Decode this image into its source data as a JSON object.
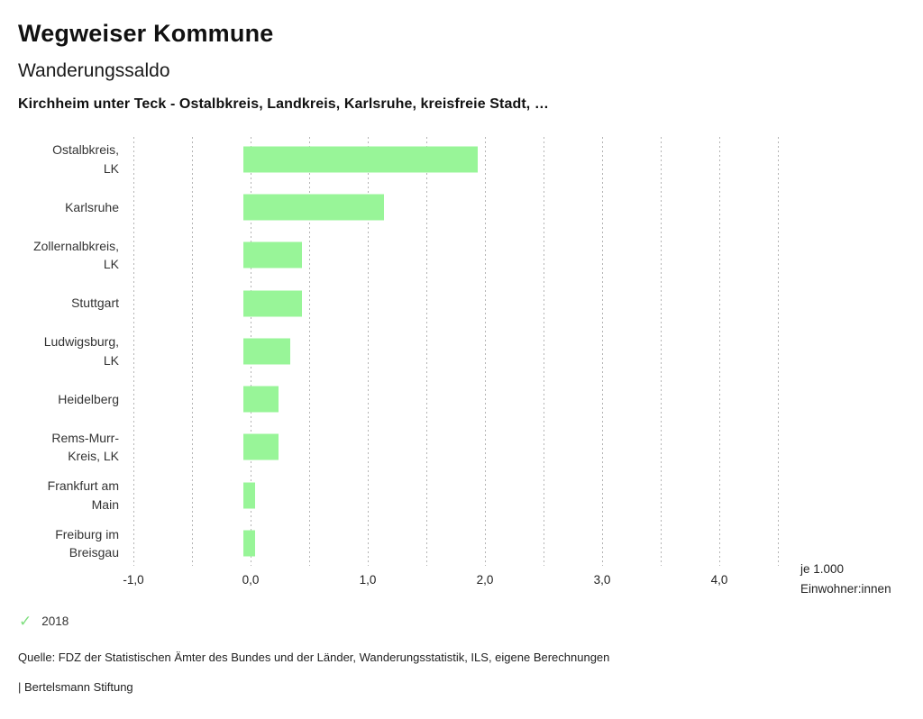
{
  "header": {
    "app_title": "Wegweiser Kommune",
    "chart_title": "Wanderungssaldo",
    "subtitle": "Kirchheim unter Teck - Ostalbkreis, Landkreis, Karlsruhe, kreisfreie Stadt, …"
  },
  "chart_data": {
    "type": "bar",
    "orientation": "horizontal",
    "title": "Wanderungssaldo",
    "series_name": "2018",
    "categories": [
      "Ostalbkreis, LK",
      "Karlsruhe",
      "Zollernalbkreis, LK",
      "Stuttgart",
      "Ludwigsburg, LK",
      "Heidelberg",
      "Rems-Murr-Kreis, LK",
      "Frankfurt am Main",
      "Freiburg im Breisgau"
    ],
    "category_label_lines": [
      [
        "Ostalbkreis,",
        "LK"
      ],
      [
        "Karlsruhe"
      ],
      [
        "Zollernalbkreis,",
        "LK"
      ],
      [
        "Stuttgart"
      ],
      [
        "Ludwigsburg,",
        "LK"
      ],
      [
        "Heidelberg"
      ],
      [
        "Rems-Murr-",
        "Kreis, LK"
      ],
      [
        "Frankfurt am",
        "Main"
      ],
      [
        "Freiburg im",
        "Breisgau"
      ]
    ],
    "values": [
      2.0,
      1.2,
      0.5,
      0.5,
      0.4,
      0.3,
      0.3,
      0.1,
      0.1
    ],
    "xlabel": "je 1.000 Einwohner:innen",
    "xlabel_lines": [
      "je 1.000",
      "Einwohner:innen"
    ],
    "ylabel": "",
    "xlim": [
      -1.0,
      4.5
    ],
    "grid": true,
    "grid_step": 0.5,
    "x_ticks": [
      {
        "value": -1.0,
        "label": "-1,0"
      },
      {
        "value": 0.0,
        "label": "0,0"
      },
      {
        "value": 1.0,
        "label": "1,0"
      },
      {
        "value": 2.0,
        "label": "2,0"
      },
      {
        "value": 3.0,
        "label": "3,0"
      },
      {
        "value": 4.0,
        "label": "4,0"
      }
    ],
    "bar_color": "#98f598",
    "gridline_color": "#b4b4b4",
    "legend_position": "bottom"
  },
  "legend": {
    "check_icon_glyph": "✓",
    "check_color": "#7fdf7f",
    "label": "2018"
  },
  "footer": {
    "source": "Quelle: FDZ der Statistischen Ämter des Bundes und der Länder, Wanderungsstatistik, ILS, eigene Berechnungen",
    "branding": "| Bertelsmann Stiftung"
  }
}
